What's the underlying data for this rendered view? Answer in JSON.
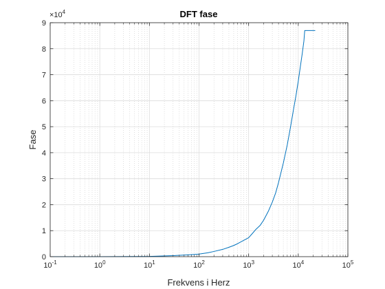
{
  "chart_data": {
    "type": "line",
    "title": "DFT fase",
    "xlabel": "Frekvens i Herz",
    "ylabel": "Fase",
    "xscale": "log",
    "xlim": [
      0.1,
      100000
    ],
    "ylim": [
      0,
      90000
    ],
    "y_exponent_label": "×10",
    "y_exponent_power": "4",
    "x_ticks": [
      {
        "value": 0.1,
        "base": "10",
        "exp": "-1"
      },
      {
        "value": 1,
        "base": "10",
        "exp": "0"
      },
      {
        "value": 10,
        "base": "10",
        "exp": "1"
      },
      {
        "value": 100,
        "base": "10",
        "exp": "2"
      },
      {
        "value": 1000,
        "base": "10",
        "exp": "3"
      },
      {
        "value": 10000,
        "base": "10",
        "exp": "4"
      },
      {
        "value": 100000,
        "base": "10",
        "exp": "5"
      }
    ],
    "y_ticks": [
      {
        "value": 0,
        "label": "0"
      },
      {
        "value": 10000,
        "label": "1"
      },
      {
        "value": 20000,
        "label": "2"
      },
      {
        "value": 30000,
        "label": "3"
      },
      {
        "value": 40000,
        "label": "4"
      },
      {
        "value": 50000,
        "label": "5"
      },
      {
        "value": 60000,
        "label": "6"
      },
      {
        "value": 70000,
        "label": "7"
      },
      {
        "value": 80000,
        "label": "8"
      },
      {
        "value": 90000,
        "label": "9"
      }
    ],
    "grid": true,
    "minor_grid": true,
    "series": [
      {
        "name": "DFT fase",
        "color": "#0072bd",
        "x": [
          0.1,
          1,
          5,
          10,
          30,
          60,
          100,
          150,
          200,
          300,
          400,
          500,
          600,
          700,
          800,
          1000,
          1200,
          1400,
          1700,
          2000,
          2500,
          3000,
          3500,
          4000,
          5000,
          6000,
          7000,
          8000,
          9000,
          10000,
          11000,
          12000,
          13000,
          13500,
          15000,
          20000,
          22000
        ],
        "y": [
          0,
          0,
          50,
          100,
          400,
          700,
          1000,
          1500,
          2000,
          2800,
          3600,
          4300,
          5000,
          5700,
          6300,
          7300,
          9000,
          10500,
          12000,
          14000,
          17500,
          21000,
          24500,
          28500,
          36000,
          43000,
          50000,
          56500,
          62000,
          67500,
          73000,
          78000,
          83000,
          87000,
          87000,
          87000,
          87000
        ]
      }
    ]
  }
}
